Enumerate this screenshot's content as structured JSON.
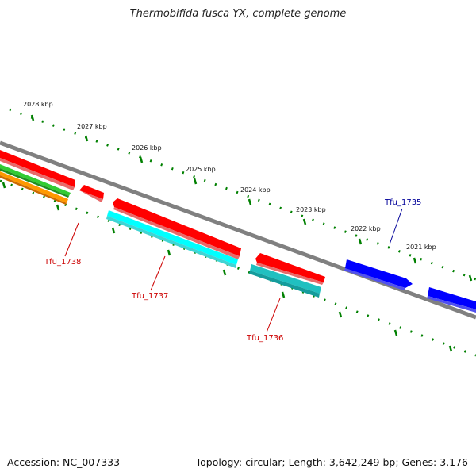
{
  "title": "Thermobifida fusca YX, complete genome",
  "accession": "Accession: NC_007333",
  "summary": "Topology: circular; Length: 3,642,249 bp; Genes: 3,176",
  "kbp_labels": [
    "2028 kbp",
    "2027 kbp",
    "2026 kbp",
    "2025 kbp",
    "2024 kbp",
    "2023 kbp",
    "2022 kbp",
    "2021 kbp"
  ],
  "gene_labels": {
    "tfu_1738": "Tfu_1738",
    "tfu_1737": "Tfu_1737",
    "tfu_1736": "Tfu_1736",
    "tfu_1735": "Tfu_1735"
  },
  "colors": {
    "backbone": "#808080",
    "cds_red": "#ff0000",
    "cds_cyan": "#00ffff",
    "cds_teal": "#20c0c0",
    "cds_blue": "#0000ff",
    "feature_green": "#33cc33",
    "feature_orange": "#ff9900",
    "tick_green": "#008000",
    "label_red": "#cc0000",
    "label_blue": "#000099"
  }
}
